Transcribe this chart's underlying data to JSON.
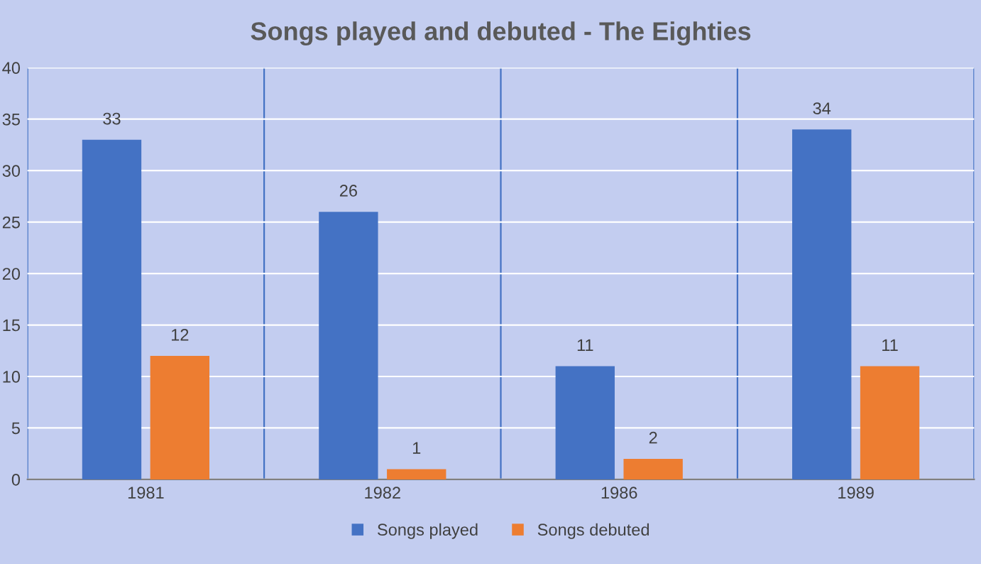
{
  "chart_data": {
    "type": "bar",
    "title": "Songs played and debuted - The Eighties",
    "categories": [
      "1981",
      "1982",
      "1986",
      "1989"
    ],
    "series": [
      {
        "name": "Songs played",
        "color": "#4472c4",
        "values": [
          33,
          26,
          11,
          34
        ]
      },
      {
        "name": "Songs debuted",
        "color": "#ed7d31",
        "values": [
          12,
          1,
          2,
          11
        ]
      }
    ],
    "ylim": [
      0,
      40
    ],
    "yticks": [
      0,
      5,
      10,
      15,
      20,
      25,
      30,
      35,
      40
    ],
    "grid": true,
    "legend": "bottom",
    "data_labels": true
  }
}
